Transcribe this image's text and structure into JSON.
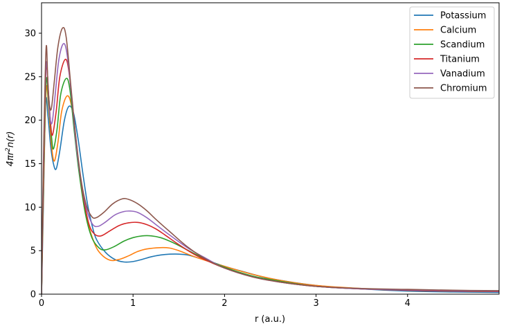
{
  "chart_data": {
    "type": "line",
    "title": "",
    "xlabel": "r (a.u.)",
    "ylabel_main": "4πr",
    "ylabel_sup": "2",
    "ylabel_tail": "n(r)",
    "xlim": [
      0,
      5
    ],
    "ylim": [
      0,
      33.5
    ],
    "xticks": [
      0,
      1,
      2,
      3,
      4
    ],
    "yticks": [
      0,
      5,
      10,
      15,
      20,
      25,
      30
    ],
    "grid": false,
    "legend_position": "top-right",
    "series": [
      {
        "name": "Potassium",
        "color": "#1f77b4",
        "points": [
          [
            0,
            0
          ],
          [
            0.02,
            10
          ],
          [
            0.045,
            22
          ],
          [
            0.07,
            20.5
          ],
          [
            0.1,
            17
          ],
          [
            0.13,
            15
          ],
          [
            0.16,
            14.4
          ],
          [
            0.2,
            16.5
          ],
          [
            0.25,
            20
          ],
          [
            0.3,
            21.6
          ],
          [
            0.35,
            20.8
          ],
          [
            0.4,
            17.8
          ],
          [
            0.45,
            14
          ],
          [
            0.5,
            10.5
          ],
          [
            0.55,
            8
          ],
          [
            0.6,
            6.3
          ],
          [
            0.7,
            4.8
          ],
          [
            0.8,
            4
          ],
          [
            0.9,
            3.7
          ],
          [
            1.0,
            3.75
          ],
          [
            1.1,
            4.0
          ],
          [
            1.2,
            4.3
          ],
          [
            1.3,
            4.5
          ],
          [
            1.4,
            4.6
          ],
          [
            1.5,
            4.6
          ],
          [
            1.6,
            4.5
          ],
          [
            1.7,
            4.2
          ],
          [
            1.8,
            3.9
          ],
          [
            2.0,
            3.2
          ],
          [
            2.2,
            2.6
          ],
          [
            2.5,
            1.8
          ],
          [
            3.0,
            1.0
          ],
          [
            3.5,
            0.6
          ],
          [
            4.0,
            0.35
          ],
          [
            4.5,
            0.25
          ],
          [
            5.0,
            0.2
          ]
        ]
      },
      {
        "name": "Calcium",
        "color": "#ff7f0e",
        "points": [
          [
            0,
            0
          ],
          [
            0.02,
            11
          ],
          [
            0.05,
            23.5
          ],
          [
            0.08,
            21
          ],
          [
            0.11,
            17
          ],
          [
            0.14,
            15.3
          ],
          [
            0.18,
            17.5
          ],
          [
            0.22,
            21
          ],
          [
            0.28,
            22.8
          ],
          [
            0.33,
            21.5
          ],
          [
            0.38,
            17
          ],
          [
            0.43,
            12.8
          ],
          [
            0.5,
            8.5
          ],
          [
            0.58,
            5.8
          ],
          [
            0.65,
            4.6
          ],
          [
            0.75,
            3.9
          ],
          [
            0.85,
            4.0
          ],
          [
            0.95,
            4.4
          ],
          [
            1.05,
            4.9
          ],
          [
            1.15,
            5.2
          ],
          [
            1.3,
            5.35
          ],
          [
            1.4,
            5.3
          ],
          [
            1.5,
            5.0
          ],
          [
            1.7,
            4.2
          ],
          [
            2.0,
            3.2
          ],
          [
            2.3,
            2.3
          ],
          [
            2.6,
            1.6
          ],
          [
            3.0,
            1.0
          ],
          [
            3.5,
            0.65
          ],
          [
            4.0,
            0.45
          ],
          [
            4.5,
            0.35
          ],
          [
            5.0,
            0.3
          ]
        ]
      },
      {
        "name": "Scandium",
        "color": "#2ca02c",
        "points": [
          [
            0,
            0
          ],
          [
            0.02,
            12
          ],
          [
            0.05,
            24.5
          ],
          [
            0.08,
            21.5
          ],
          [
            0.11,
            18
          ],
          [
            0.13,
            16.7
          ],
          [
            0.17,
            19
          ],
          [
            0.21,
            23
          ],
          [
            0.27,
            24.8
          ],
          [
            0.31,
            23.5
          ],
          [
            0.36,
            18.5
          ],
          [
            0.41,
            14
          ],
          [
            0.48,
            9.2
          ],
          [
            0.55,
            6.5
          ],
          [
            0.63,
            5.3
          ],
          [
            0.7,
            5.1
          ],
          [
            0.8,
            5.5
          ],
          [
            0.9,
            6.1
          ],
          [
            1.0,
            6.5
          ],
          [
            1.1,
            6.7
          ],
          [
            1.2,
            6.7
          ],
          [
            1.3,
            6.5
          ],
          [
            1.4,
            6.1
          ],
          [
            1.5,
            5.6
          ],
          [
            1.7,
            4.5
          ],
          [
            2.0,
            3.1
          ],
          [
            2.3,
            2.1
          ],
          [
            2.6,
            1.5
          ],
          [
            3.0,
            0.9
          ],
          [
            3.5,
            0.6
          ],
          [
            4.0,
            0.45
          ],
          [
            4.5,
            0.35
          ],
          [
            5.0,
            0.3
          ]
        ]
      },
      {
        "name": "Titanium",
        "color": "#d62728",
        "points": [
          [
            0,
            0
          ],
          [
            0.02,
            13
          ],
          [
            0.05,
            26
          ],
          [
            0.08,
            22.5
          ],
          [
            0.1,
            19.5
          ],
          [
            0.12,
            18.3
          ],
          [
            0.16,
            21
          ],
          [
            0.2,
            25
          ],
          [
            0.26,
            27
          ],
          [
            0.3,
            25.5
          ],
          [
            0.35,
            20.5
          ],
          [
            0.4,
            15.5
          ],
          [
            0.46,
            11
          ],
          [
            0.52,
            8
          ],
          [
            0.58,
            6.9
          ],
          [
            0.65,
            6.7
          ],
          [
            0.75,
            7.3
          ],
          [
            0.85,
            7.9
          ],
          [
            0.95,
            8.2
          ],
          [
            1.05,
            8.25
          ],
          [
            1.15,
            8.0
          ],
          [
            1.25,
            7.5
          ],
          [
            1.35,
            6.8
          ],
          [
            1.5,
            5.7
          ],
          [
            1.7,
            4.4
          ],
          [
            2.0,
            3.0
          ],
          [
            2.3,
            2.0
          ],
          [
            2.6,
            1.4
          ],
          [
            3.0,
            0.9
          ],
          [
            3.5,
            0.6
          ],
          [
            4.0,
            0.45
          ],
          [
            4.5,
            0.35
          ],
          [
            5.0,
            0.3
          ]
        ]
      },
      {
        "name": "Vanadium",
        "color": "#9467bd",
        "points": [
          [
            0,
            0
          ],
          [
            0.02,
            14
          ],
          [
            0.05,
            26.5
          ],
          [
            0.08,
            22
          ],
          [
            0.1,
            19.8
          ],
          [
            0.12,
            20
          ],
          [
            0.15,
            23
          ],
          [
            0.19,
            27
          ],
          [
            0.24,
            28.8
          ],
          [
            0.28,
            27.5
          ],
          [
            0.33,
            22.5
          ],
          [
            0.38,
            17
          ],
          [
            0.44,
            12.5
          ],
          [
            0.5,
            9.5
          ],
          [
            0.56,
            8.0
          ],
          [
            0.62,
            7.8
          ],
          [
            0.7,
            8.3
          ],
          [
            0.8,
            9.1
          ],
          [
            0.9,
            9.5
          ],
          [
            0.98,
            9.55
          ],
          [
            1.05,
            9.4
          ],
          [
            1.15,
            8.8
          ],
          [
            1.25,
            8.0
          ],
          [
            1.4,
            6.8
          ],
          [
            1.6,
            5.3
          ],
          [
            1.8,
            4.1
          ],
          [
            2.0,
            3.0
          ],
          [
            2.3,
            2.0
          ],
          [
            2.6,
            1.4
          ],
          [
            3.0,
            0.9
          ],
          [
            3.5,
            0.6
          ],
          [
            4.0,
            0.5
          ],
          [
            4.5,
            0.4
          ],
          [
            5.0,
            0.35
          ]
        ]
      },
      {
        "name": "Chromium",
        "color": "#8c564b",
        "points": [
          [
            0,
            0
          ],
          [
            0.02,
            15
          ],
          [
            0.05,
            28.3
          ],
          [
            0.07,
            24
          ],
          [
            0.09,
            21.5
          ],
          [
            0.11,
            21.5
          ],
          [
            0.14,
            24.5
          ],
          [
            0.18,
            28.5
          ],
          [
            0.23,
            30.6
          ],
          [
            0.27,
            29.5
          ],
          [
            0.32,
            24
          ],
          [
            0.37,
            18.5
          ],
          [
            0.43,
            13.3
          ],
          [
            0.49,
            10.2
          ],
          [
            0.55,
            8.9
          ],
          [
            0.6,
            8.8
          ],
          [
            0.68,
            9.4
          ],
          [
            0.78,
            10.4
          ],
          [
            0.88,
            10.95
          ],
          [
            0.95,
            10.9
          ],
          [
            1.05,
            10.4
          ],
          [
            1.15,
            9.6
          ],
          [
            1.25,
            8.6
          ],
          [
            1.4,
            7.2
          ],
          [
            1.6,
            5.4
          ],
          [
            1.8,
            4.0
          ],
          [
            2.0,
            3.0
          ],
          [
            2.3,
            2.0
          ],
          [
            2.6,
            1.4
          ],
          [
            3.0,
            0.9
          ],
          [
            3.5,
            0.65
          ],
          [
            4.0,
            0.55
          ],
          [
            4.5,
            0.45
          ],
          [
            5.0,
            0.4
          ]
        ]
      }
    ]
  }
}
